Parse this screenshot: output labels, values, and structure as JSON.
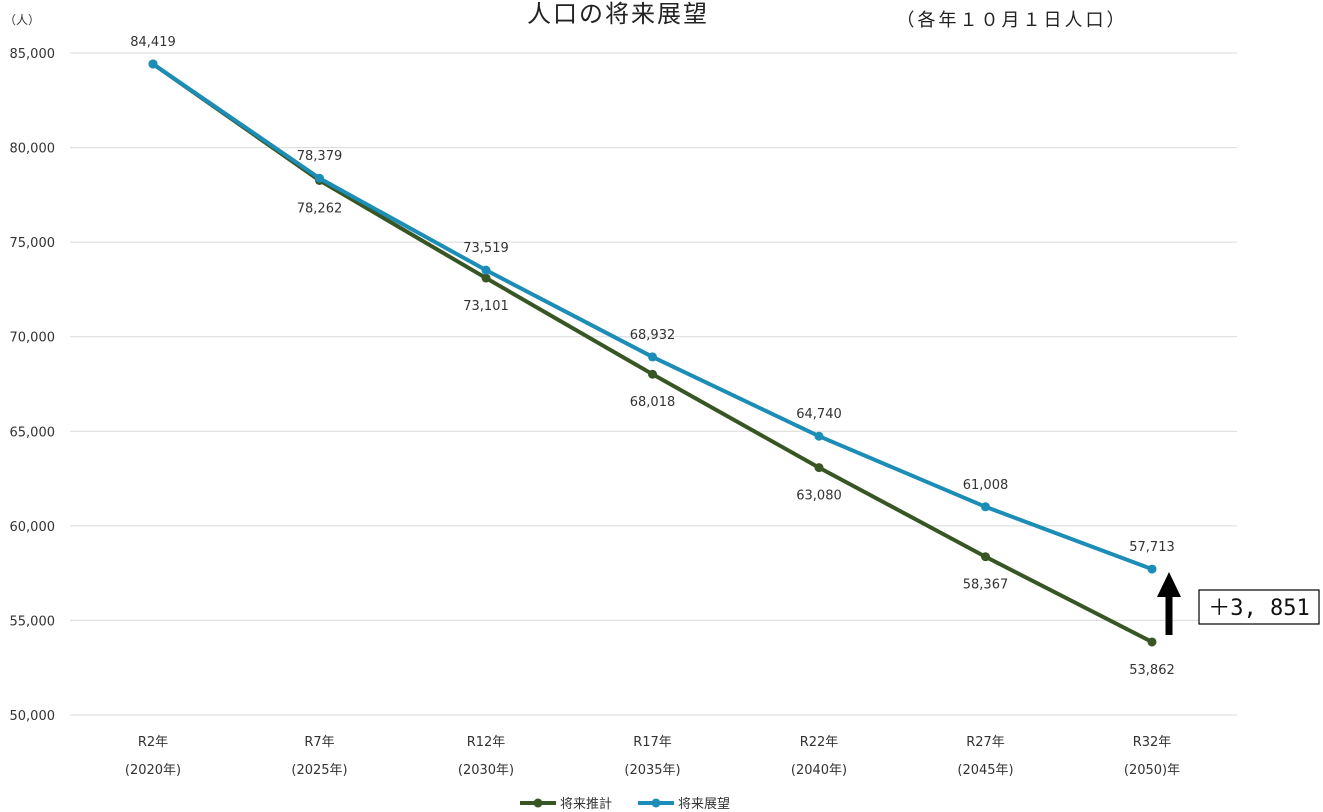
{
  "chart_data": {
    "type": "line",
    "title": "人口の将来展望",
    "subtitle": "（各年１０月１日人口）",
    "ylabel": "（人）",
    "xlabel": "",
    "ylim": [
      50000,
      85000
    ],
    "yticks": [
      50000,
      55000,
      60000,
      65000,
      70000,
      75000,
      80000,
      85000
    ],
    "ytick_labels": [
      "50,000",
      "55,000",
      "60,000",
      "65,000",
      "70,000",
      "75,000",
      "80,000",
      "85,000"
    ],
    "grid": true,
    "legend_position": "bottom",
    "categories": [
      {
        "line1": "R2年",
        "line2": "(2020年)"
      },
      {
        "line1": "R7年",
        "line2": "(2025年)"
      },
      {
        "line1": "R12年",
        "line2": "(2030年)"
      },
      {
        "line1": "R17年",
        "line2": "(2035年)"
      },
      {
        "line1": "R22年",
        "line2": "(2040年)"
      },
      {
        "line1": "R27年",
        "line2": "(2045年)"
      },
      {
        "line1": "R32年",
        "line2": "(2050)年"
      }
    ],
    "series": [
      {
        "name": "将来推計",
        "color": "#375623",
        "values": [
          84419,
          78262,
          73101,
          68018,
          63080,
          58367,
          53862
        ],
        "labels": [
          "",
          "78,262",
          "73,101",
          "68,018",
          "63,080",
          "58,367",
          "53,862"
        ]
      },
      {
        "name": "将来展望",
        "color": "#1b8db6",
        "values": [
          84419,
          78379,
          73519,
          68932,
          64740,
          61008,
          57713
        ],
        "labels": [
          "84,419",
          "78,379",
          "73,519",
          "68,932",
          "64,740",
          "61,008",
          "57,713"
        ]
      }
    ],
    "annotation": {
      "text": "＋3, 851",
      "category_index": 6,
      "arrow_color": "#000000"
    }
  }
}
